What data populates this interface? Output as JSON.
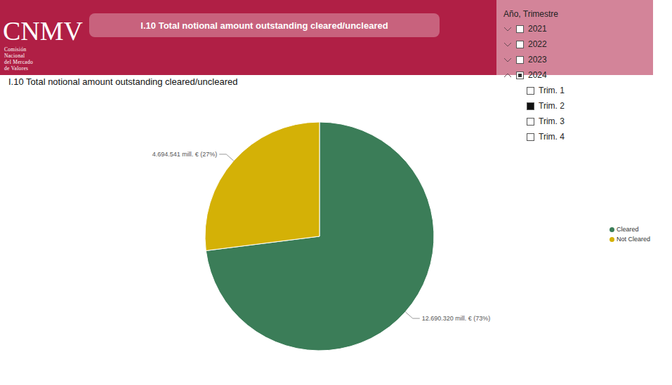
{
  "header": {
    "logo": "CNMV",
    "logo_subtitle": [
      "Comisión",
      "Nacional",
      "del Mercado",
      "de Valores"
    ],
    "title": "I.10 Total notional amount outstanding cleared/uncleared"
  },
  "filter": {
    "title": "Año, Trimestre",
    "years": [
      "2021",
      "2022",
      "2023",
      "2024"
    ],
    "expanded_year": "2024",
    "quarters": [
      "Trim. 1",
      "Trim. 2",
      "Trim. 3",
      "Trim. 4"
    ],
    "selected_quarter": "Trim. 2"
  },
  "chart_data": {
    "type": "pie",
    "title": "I.10 Total notional amount outstanding cleared/uncleared",
    "categories": [
      "Cleared",
      "Not Cleared"
    ],
    "values": [
      12690320,
      4694541
    ],
    "value_labels": [
      "12.690.320 mill. € (73%)",
      "4.694.541 mill. € (27%)"
    ],
    "colors": [
      "#3b7d58",
      "#d4b106"
    ],
    "data_labels": true,
    "legend": "right"
  }
}
